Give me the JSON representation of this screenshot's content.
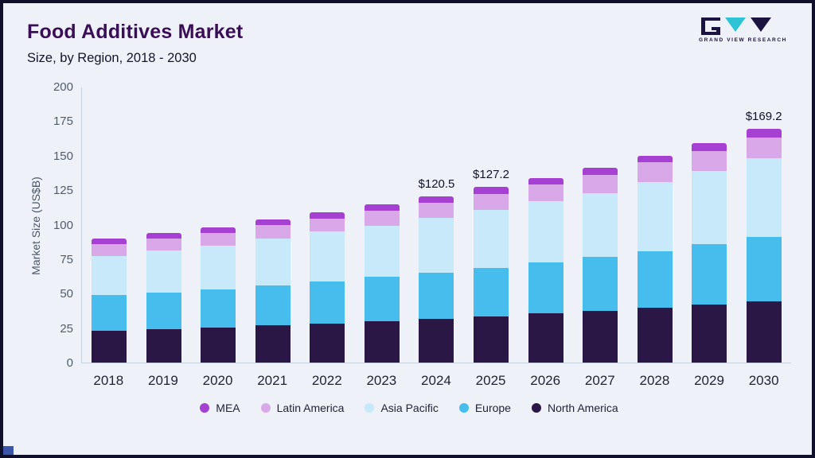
{
  "header": {
    "title": "Food Additives Market",
    "subtitle": "Size, by Region, 2018 - 2030",
    "logo_text": "GRAND VIEW RESEARCH"
  },
  "colors": {
    "background": "#eef1f7",
    "frame_border": "#10102d",
    "title": "#3a0e57",
    "accent_teal": "#2ec4d6"
  },
  "chart_data": {
    "type": "bar",
    "stacked": true,
    "title": "Food Additives Market Size, by Region, 2018 - 2030",
    "xlabel": "",
    "ylabel": "Market Size (US$B)",
    "ylim": [
      0,
      200
    ],
    "yticks": [
      0,
      25,
      50,
      75,
      100,
      125,
      150,
      175,
      200
    ],
    "grid": false,
    "legend_position": "bottom",
    "categories": [
      "2018",
      "2019",
      "2020",
      "2021",
      "2022",
      "2023",
      "2024",
      "2025",
      "2026",
      "2027",
      "2028",
      "2029",
      "2030"
    ],
    "series": [
      {
        "name": "North America",
        "color": "#2b1745",
        "values": [
          23,
          24.5,
          25.5,
          27,
          28.5,
          30,
          31.5,
          33.5,
          35.5,
          37.5,
          40,
          42,
          44.5
        ]
      },
      {
        "name": "Europe",
        "color": "#47bdee",
        "values": [
          26,
          26.5,
          27.5,
          29,
          30.5,
          32,
          33.5,
          35,
          37,
          39,
          41,
          44,
          46.5
        ]
      },
      {
        "name": "Asia Pacific",
        "color": "#c8e9f9",
        "values": [
          28,
          30,
          32,
          34,
          36,
          37,
          40,
          42.5,
          44.5,
          46.5,
          50,
          53,
          57
        ]
      },
      {
        "name": "Latin America",
        "color": "#d8a8e8",
        "values": [
          9,
          9,
          9,
          9.5,
          9.5,
          11,
          11,
          11.5,
          12,
          13,
          14,
          14.5,
          15
        ]
      },
      {
        "name": "MEA",
        "color": "#a640d2",
        "values": [
          4,
          4,
          4,
          4.5,
          4.5,
          4.5,
          4.5,
          4.7,
          5,
          5,
          5,
          5.5,
          6.2
        ]
      }
    ],
    "legend_order": [
      "MEA",
      "Latin America",
      "Asia Pacific",
      "Europe",
      "North America"
    ],
    "annotations": [
      {
        "category": "2024",
        "text": "$120.5"
      },
      {
        "category": "2025",
        "text": "$127.2"
      },
      {
        "category": "2030",
        "text": "$169.2"
      }
    ]
  }
}
